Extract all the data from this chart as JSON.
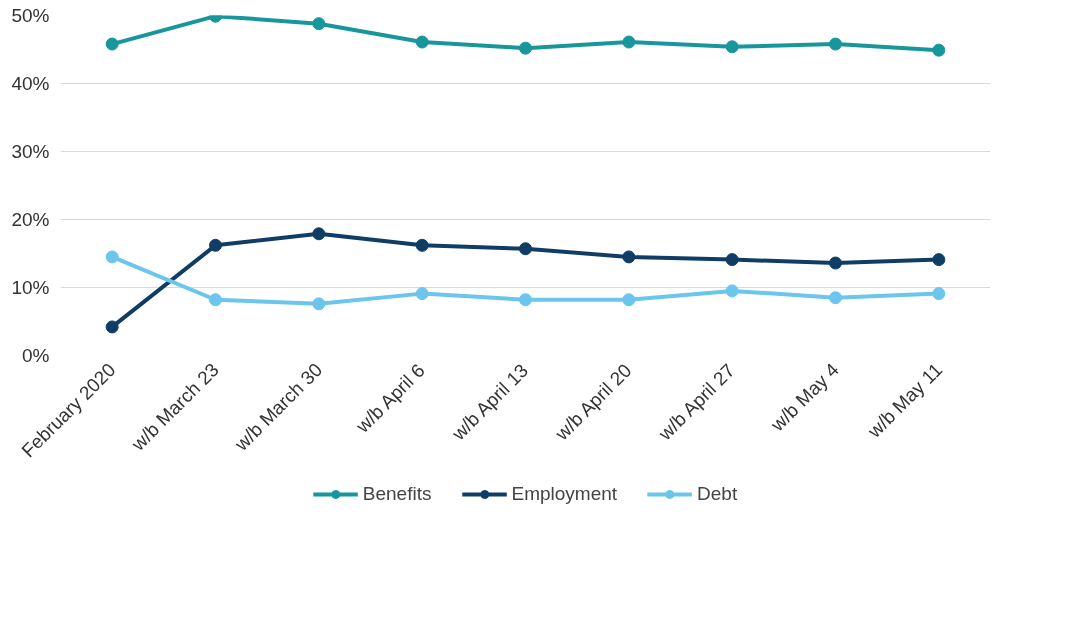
{
  "chart_data": {
    "type": "line",
    "categories": [
      "February 2020",
      "w/b March 23",
      "w/b March 30",
      "w/b April 6",
      "w/b April 13",
      "w/b April 20",
      "w/b April 27",
      "w/b May 4",
      "w/b May 11"
    ],
    "series": [
      {
        "name": "Benefits",
        "color": "#17969c",
        "values": [
          45.8,
          49.9,
          48.8,
          46.1,
          45.2,
          46.1,
          45.4,
          45.8,
          44.9
        ]
      },
      {
        "name": "Employment",
        "color": "#0f3d66",
        "values": [
          4.2,
          16.2,
          17.9,
          16.2,
          15.7,
          14.5,
          14.1,
          13.6,
          14.1
        ]
      },
      {
        "name": "Debt",
        "color": "#6cc5ec",
        "values": [
          14.5,
          8.2,
          7.6,
          9.1,
          8.2,
          8.2,
          9.5,
          8.5,
          9.1
        ]
      }
    ],
    "ylim": [
      0,
      50
    ],
    "yticks": [
      {
        "value": 0,
        "label": "0%"
      },
      {
        "value": 10,
        "label": "10%"
      },
      {
        "value": 20,
        "label": "20%"
      },
      {
        "value": 30,
        "label": "30%"
      },
      {
        "value": 40,
        "label": "40%"
      },
      {
        "value": 50,
        "label": "50%"
      }
    ],
    "grid": "y",
    "legend": "bottom",
    "marker": "circle",
    "line_style": "solid"
  }
}
